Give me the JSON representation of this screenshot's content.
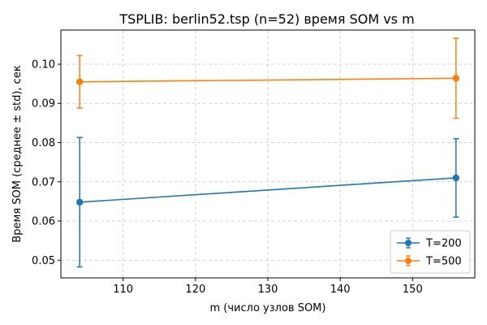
{
  "chart_data": {
    "type": "line",
    "title": "TSPLIB: berlin52.tsp (n=52) время SOM vs m",
    "xlabel": "m (число узлов SOM)",
    "ylabel": "Время SOM (среднее ± std), сек",
    "xlim": [
      101.4,
      158.6
    ],
    "ylim": [
      0.0455,
      0.1087
    ],
    "xticks": [
      110,
      120,
      130,
      140,
      150
    ],
    "yticks": [
      0.05,
      0.06,
      0.07,
      0.08,
      0.09,
      0.1
    ],
    "ytick_labels": [
      "0.05",
      "0.06",
      "0.07",
      "0.08",
      "0.09",
      "0.10"
    ],
    "grid": true,
    "legend_position": "lower-right",
    "x": [
      104,
      156
    ],
    "series": [
      {
        "name": "T=200",
        "color": "#1f77b4",
        "values": [
          0.0648,
          0.071
        ],
        "err": [
          0.0165,
          0.01
        ]
      },
      {
        "name": "T=500",
        "color": "#ff7f0e",
        "values": [
          0.0955,
          0.0964
        ],
        "err": [
          0.0067,
          0.0102
        ]
      }
    ]
  }
}
